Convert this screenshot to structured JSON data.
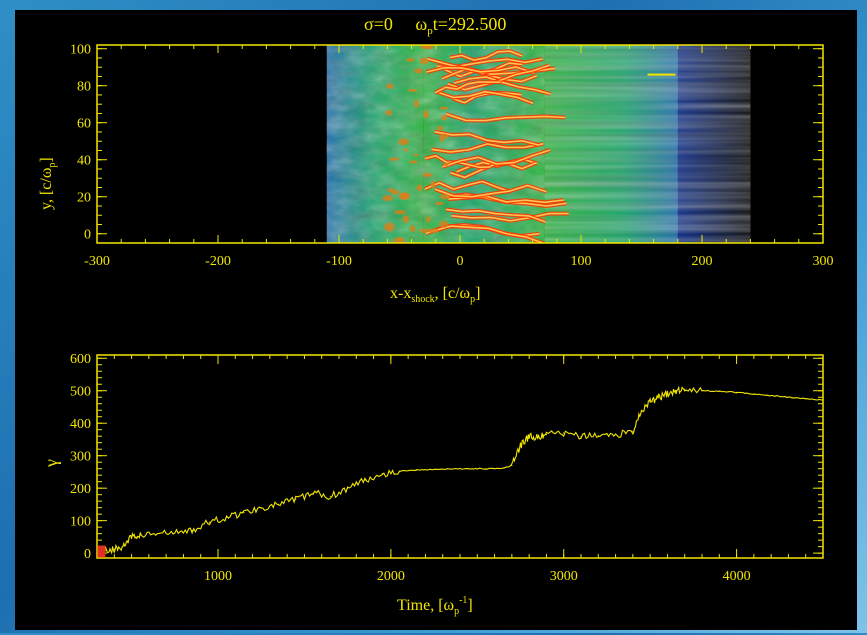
{
  "colors": {
    "axis": "#f2e600",
    "marker": "#e03020",
    "background": "#000000"
  },
  "chart_data": [
    {
      "type": "heatmap",
      "title": "σ=0   ω_p t=292.500",
      "title_parts": {
        "sigma": "σ=0",
        "omega": "ω",
        "omega_sub": "p",
        "time": "t=292.500"
      },
      "xlabel": "x-x_shock, [c/ω_p]",
      "xlabel_parts": {
        "a": "x-x",
        "sub": "shock",
        "b": ", [c/ω",
        "sub2": "p",
        "c": "]"
      },
      "ylabel": "y, [c/ω_p]",
      "ylabel_parts": {
        "a": "y, [c/ω",
        "sub": "p",
        "b": "]"
      },
      "xlim": [
        -300,
        300
      ],
      "ylim": [
        -5,
        102
      ],
      "xticks": [
        "-300",
        "-200",
        "-100",
        "0",
        "100",
        "200",
        "300"
      ],
      "yticks": [
        "0",
        "20",
        "40",
        "60",
        "80",
        "100"
      ],
      "colormap": [
        "#000000",
        "#0a2a8a",
        "#1f6fae",
        "#1aa56a",
        "#2bb53c",
        "#d9801a",
        "#ff3300",
        "#ffd35a"
      ],
      "regions": [
        {
          "x": [
            -300,
            -110
          ],
          "level": "empty"
        },
        {
          "x": [
            -110,
            -30
          ],
          "level": "low-mixed"
        },
        {
          "x": [
            -30,
            70
          ],
          "level": "high-filaments"
        },
        {
          "x": [
            70,
            180
          ],
          "level": "medium-striated"
        },
        {
          "x": [
            180,
            240
          ],
          "level": "faint-upstream"
        }
      ],
      "marker_segment": {
        "x": [
          155,
          178
        ],
        "y": 86
      }
    },
    {
      "type": "line",
      "xlabel": "Time, [ω_p^-1]",
      "xlabel_parts": {
        "a": "Time, [ω",
        "sub": "p",
        "sup": "-1",
        "b": "]"
      },
      "ylabel": "γ",
      "xlim": [
        300,
        4500
      ],
      "ylim": [
        -15,
        610
      ],
      "xticks": [
        1000,
        2000,
        3000,
        4000
      ],
      "yticks": [
        0,
        100,
        200,
        300,
        400,
        500,
        600
      ],
      "current_time_marker": {
        "x": 320,
        "y": 5
      },
      "series": [
        {
          "color": "#f2e600",
          "points": [
            [
              300,
              5
            ],
            [
              350,
              8
            ],
            [
              400,
              12
            ],
            [
              450,
              20
            ],
            [
              500,
              50
            ],
            [
              550,
              55
            ],
            [
              650,
              60
            ],
            [
              750,
              62
            ],
            [
              850,
              70
            ],
            [
              950,
              95
            ],
            [
              1050,
              110
            ],
            [
              1150,
              125
            ],
            [
              1250,
              140
            ],
            [
              1350,
              150
            ],
            [
              1450,
              165
            ],
            [
              1550,
              185
            ],
            [
              1650,
              175
            ],
            [
              1750,
              200
            ],
            [
              1850,
              225
            ],
            [
              1950,
              245
            ],
            [
              2050,
              252
            ],
            [
              2150,
              256
            ],
            [
              2250,
              258
            ],
            [
              2350,
              259
            ],
            [
              2450,
              260
            ],
            [
              2550,
              260
            ],
            [
              2650,
              262
            ],
            [
              2700,
              270
            ],
            [
              2750,
              330
            ],
            [
              2800,
              360
            ],
            [
              2850,
              355
            ],
            [
              2900,
              365
            ],
            [
              3000,
              370
            ],
            [
              3100,
              358
            ],
            [
              3200,
              362
            ],
            [
              3300,
              365
            ],
            [
              3400,
              375
            ],
            [
              3450,
              440
            ],
            [
              3500,
              465
            ],
            [
              3550,
              480
            ],
            [
              3600,
              490
            ],
            [
              3650,
              500
            ],
            [
              3700,
              505
            ],
            [
              3800,
              500
            ],
            [
              3900,
              498
            ],
            [
              4000,
              495
            ],
            [
              4100,
              490
            ],
            [
              4200,
              485
            ],
            [
              4300,
              480
            ],
            [
              4400,
              475
            ],
            [
              4500,
              472
            ]
          ]
        }
      ]
    }
  ]
}
